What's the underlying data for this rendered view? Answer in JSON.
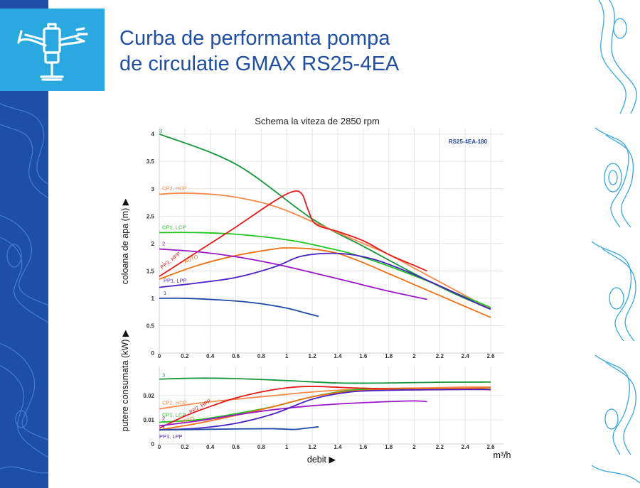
{
  "page": {
    "title_line1": "Curba de performanta pompa",
    "title_line2": "de circulatie GMAX RS25-4EA",
    "icon": "sprinkler-icon"
  },
  "colors": {
    "brand_blue": "#1f4ea3",
    "logo_bg": "#2aa8e0",
    "strip_dark": "#1d4fa6"
  },
  "chart_data": [
    {
      "type": "line",
      "title": "Schema la viteza de 2850 rpm",
      "model_label": "RS25-4EA-180",
      "ylabel": "coloana de apa (m) ▶",
      "xlabel": "",
      "xlim": [
        0,
        2.7
      ],
      "ylim": [
        0,
        4.1
      ],
      "xticks": [
        "0",
        "0.2",
        "0.4",
        "0.6",
        "0.8",
        "1",
        "1.2",
        "1.4",
        "1.6",
        "1.8",
        "2",
        "2.2",
        "2.4",
        "2.6"
      ],
      "yticks": [
        "0",
        "0.5",
        "1",
        "1.5",
        "2",
        "2.5",
        "3",
        "3.5",
        "4"
      ],
      "grid": true,
      "series": [
        {
          "name": "3",
          "color": "#14963a",
          "x": [
            0,
            0.6,
            1.2,
            1.6,
            2.0,
            2.3,
            2.6
          ],
          "y": [
            4.0,
            3.45,
            2.45,
            1.95,
            1.45,
            1.1,
            0.8
          ]
        },
        {
          "name": "CP2, HCP",
          "color": "#f4894b",
          "x": [
            0,
            0.2,
            0.5,
            0.8,
            1.0,
            1.2,
            1.4,
            1.6,
            1.8,
            2.0,
            2.2,
            2.4,
            2.6
          ],
          "y": [
            2.9,
            2.92,
            2.88,
            2.75,
            2.6,
            2.4,
            2.2,
            2.0,
            1.8,
            1.55,
            1.3,
            1.05,
            0.8
          ]
        },
        {
          "name": "CP1, LCP",
          "color": "#21c521",
          "x": [
            0,
            0.3,
            0.6,
            0.9,
            1.1,
            1.3,
            1.5,
            1.7,
            1.9,
            2.1,
            2.3,
            2.5,
            2.6
          ],
          "y": [
            2.2,
            2.2,
            2.17,
            2.1,
            2.03,
            1.93,
            1.82,
            1.67,
            1.5,
            1.32,
            1.12,
            0.93,
            0.83
          ]
        },
        {
          "name": "PP2, HPP",
          "color": "#e41b1b",
          "x": [
            0,
            0.3,
            0.6,
            0.9,
            1.05,
            1.12,
            1.17,
            1.23,
            1.4,
            1.6,
            1.8,
            2.0,
            2.1
          ],
          "y": [
            1.4,
            1.85,
            2.3,
            2.77,
            2.95,
            2.9,
            2.6,
            2.35,
            2.22,
            2.05,
            1.8,
            1.6,
            1.5
          ]
        },
        {
          "name": "AUTO",
          "color": "#f07011",
          "x": [
            0,
            0.3,
            0.6,
            0.9,
            1.0,
            1.2,
            1.4,
            1.6,
            1.8,
            2.0,
            2.2,
            2.4,
            2.6
          ],
          "y": [
            1.35,
            1.6,
            1.78,
            1.9,
            1.92,
            1.9,
            1.82,
            1.65,
            1.45,
            1.25,
            1.05,
            0.85,
            0.65
          ]
        },
        {
          "name": "2",
          "color": "#9b16c8",
          "x": [
            0,
            0.3,
            0.6,
            0.9,
            1.2,
            1.5,
            1.8,
            2.1
          ],
          "y": [
            1.9,
            1.85,
            1.76,
            1.63,
            1.47,
            1.3,
            1.13,
            0.98
          ]
        },
        {
          "name": "PP1, LPP",
          "color": "#4b1fc4",
          "x": [
            0,
            0.3,
            0.6,
            0.9,
            1.1,
            1.3,
            1.5,
            1.7,
            1.9,
            2.1,
            2.3,
            2.5,
            2.6
          ],
          "y": [
            1.2,
            1.28,
            1.38,
            1.57,
            1.76,
            1.82,
            1.8,
            1.7,
            1.53,
            1.33,
            1.12,
            0.9,
            0.8
          ]
        },
        {
          "name": "1",
          "color": "#1f49a8",
          "x": [
            0,
            0.2,
            0.4,
            0.6,
            0.8,
            1.0,
            1.15,
            1.25
          ],
          "y": [
            1.0,
            1.0,
            0.98,
            0.95,
            0.9,
            0.82,
            0.73,
            0.67
          ]
        }
      ]
    },
    {
      "type": "line",
      "title": "",
      "ylabel": "putere consumata (kW) ▶",
      "xlabel": "debit ▶",
      "xunit": "m³/h",
      "xlim": [
        0,
        2.7
      ],
      "ylim": [
        0,
        0.032
      ],
      "xticks": [
        "0",
        "0.2",
        "0.4",
        "0.6",
        "0.8",
        "1",
        "1.2",
        "1.4",
        "1.6",
        "1.8",
        "2",
        "2.2",
        "2.4",
        "2.6"
      ],
      "yticks": [
        "0",
        "0.01",
        "0.02"
      ],
      "grid": true,
      "series": [
        {
          "name": "3",
          "color": "#14963a",
          "x": [
            0,
            0.3,
            0.6,
            1.0,
            1.4,
            1.8,
            2.2,
            2.6
          ],
          "y": [
            0.0268,
            0.0272,
            0.027,
            0.0262,
            0.0252,
            0.0252,
            0.0255,
            0.0256
          ]
        },
        {
          "name": "CP2, HCP",
          "color": "#f4894b",
          "x": [
            0,
            0.3,
            0.6,
            0.9,
            1.2,
            1.5,
            1.8,
            2.1,
            2.4,
            2.6
          ],
          "y": [
            0.0145,
            0.0168,
            0.0185,
            0.02,
            0.0215,
            0.0225,
            0.023,
            0.0232,
            0.0235,
            0.0235
          ]
        },
        {
          "name": "CP1, LCP",
          "color": "#21c521",
          "x": [
            0,
            0.3,
            0.6,
            0.9,
            1.2,
            1.5,
            1.8,
            2.1,
            2.4,
            2.6
          ],
          "y": [
            0.009,
            0.01,
            0.0125,
            0.0155,
            0.0195,
            0.0222,
            0.0228,
            0.0228,
            0.0228,
            0.0225
          ]
        },
        {
          "name": "PP2, HPP",
          "color": "#e41b1b",
          "x": [
            0,
            0.2,
            0.4,
            0.6,
            0.8,
            1.0,
            1.2,
            1.5,
            1.8,
            2.1,
            2.4,
            2.6
          ],
          "y": [
            0.0065,
            0.0115,
            0.0155,
            0.019,
            0.0215,
            0.0232,
            0.0238,
            0.0232,
            0.0228,
            0.0228,
            0.0228,
            0.0224
          ]
        },
        {
          "name": "AUTO",
          "color": "#f07011",
          "x": [
            0,
            0.3,
            0.6,
            0.9,
            1.2,
            1.5,
            1.8,
            2.1,
            2.4,
            2.6
          ],
          "y": [
            0.0058,
            0.0085,
            0.0118,
            0.0155,
            0.0195,
            0.0218,
            0.0225,
            0.0228,
            0.023,
            0.0232
          ]
        },
        {
          "name": "2",
          "color": "#9b16c8",
          "x": [
            0,
            0.3,
            0.6,
            0.9,
            1.2,
            1.5,
            1.8,
            2.0,
            2.1
          ],
          "y": [
            0.0075,
            0.0095,
            0.012,
            0.0142,
            0.0158,
            0.0168,
            0.0175,
            0.0178,
            0.0175
          ]
        },
        {
          "name": "PP1, LPP",
          "color": "#4b1fc4",
          "x": [
            0,
            0.3,
            0.6,
            0.9,
            1.2,
            1.5,
            1.8,
            2.1,
            2.4,
            2.6
          ],
          "y": [
            0.0058,
            0.0065,
            0.0085,
            0.0125,
            0.0185,
            0.0215,
            0.0222,
            0.0224,
            0.0225,
            0.0225
          ]
        },
        {
          "name": "1",
          "color": "#1f49a8",
          "x": [
            0,
            0.3,
            0.6,
            0.9,
            1.05,
            1.15,
            1.25
          ],
          "y": [
            0.0058,
            0.006,
            0.0062,
            0.0063,
            0.006,
            0.0065,
            0.0071
          ]
        }
      ]
    }
  ]
}
